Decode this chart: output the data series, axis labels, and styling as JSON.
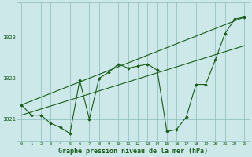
{
  "background_color": "#cce8e8",
  "grid_color": "#8bbaba",
  "line_color": "#1a5c1a",
  "marker_color": "#1a5c1a",
  "xlabel": "Graphe pression niveau de la mer (hPa)",
  "xlabel_fontsize": 6.0,
  "yticks": [
    1021,
    1022,
    1023
  ],
  "ylim": [
    1020.45,
    1023.85
  ],
  "xlim": [
    -0.5,
    23.5
  ],
  "xticks": [
    0,
    1,
    2,
    3,
    4,
    5,
    6,
    7,
    8,
    9,
    10,
    11,
    12,
    13,
    14,
    15,
    16,
    17,
    18,
    19,
    20,
    21,
    22,
    23
  ],
  "series1": {
    "x": [
      0,
      1,
      2,
      3,
      4,
      5,
      6,
      7,
      8,
      9,
      10,
      11,
      12,
      13,
      14,
      15,
      16,
      17,
      18,
      19,
      20,
      21,
      22,
      23
    ],
    "y": [
      1021.35,
      1021.1,
      1021.1,
      1020.9,
      1020.8,
      1020.65,
      1021.95,
      1021.0,
      1022.0,
      1022.15,
      1022.35,
      1022.25,
      1022.3,
      1022.35,
      1022.2,
      1020.7,
      1020.75,
      1021.05,
      1021.85,
      1021.85,
      1022.45,
      1023.1,
      1023.45,
      1023.5
    ]
  },
  "line_upper": {
    "x": [
      0,
      23
    ],
    "y": [
      1021.35,
      1023.5
    ]
  },
  "line_lower": {
    "x": [
      0,
      23
    ],
    "y": [
      1021.1,
      1022.8
    ]
  }
}
